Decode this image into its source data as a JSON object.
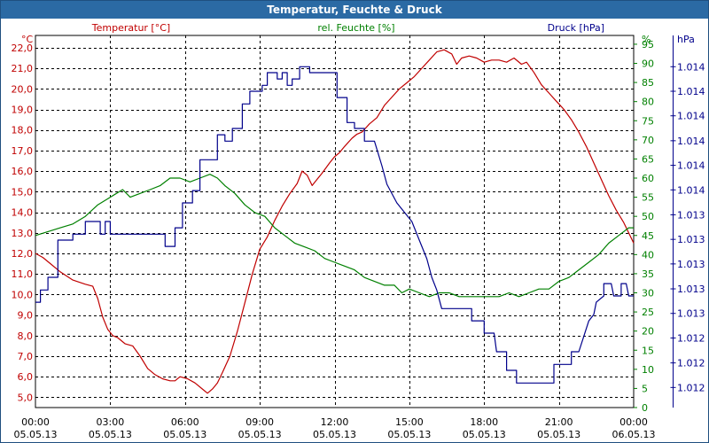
{
  "window": {
    "title": "Temperatur, Feuchte & Druck"
  },
  "colors": {
    "temperature": "#c00000",
    "humidity": "#008000",
    "pressure": "#00008b",
    "titlebar": "#2b6aa4",
    "grid": "#000000"
  },
  "chart_data": {
    "type": "line",
    "title": "Temperatur, Feuchte & Druck",
    "grid": true,
    "x": {
      "range_hours": [
        0,
        24
      ],
      "ticks": [
        {
          "time": "00:00",
          "date": "05.05.13"
        },
        {
          "time": "03:00",
          "date": "05.05.13"
        },
        {
          "time": "06:00",
          "date": "05.05.13"
        },
        {
          "time": "09:00",
          "date": "05.05.13"
        },
        {
          "time": "12:00",
          "date": "05.05.13"
        },
        {
          "time": "15:00",
          "date": "05.05.13"
        },
        {
          "time": "18:00",
          "date": "05.05.13"
        },
        {
          "time": "21:00",
          "date": "05.05.13"
        },
        {
          "time": "00:00",
          "date": "06.05.13"
        }
      ]
    },
    "axes": {
      "temperature": {
        "label": "Temperatur [°C]",
        "unit": "°C",
        "range": [
          4.5,
          22.6
        ],
        "tick_values": [
          5,
          6,
          7,
          8,
          9,
          10,
          11,
          12,
          13,
          14,
          15,
          16,
          17,
          18,
          19,
          20,
          21,
          22
        ],
        "tick_labels": [
          "5,0",
          "6,0",
          "7,0",
          "8,0",
          "9,0",
          "10,0",
          "11,0",
          "12,0",
          "13,0",
          "14,0",
          "15,0",
          "16,0",
          "17,0",
          "18,0",
          "19,0",
          "20,0",
          "21,0",
          "22,0"
        ]
      },
      "humidity": {
        "label": "rel. Feuchte [%]",
        "unit": "%",
        "range": [
          0,
          97.3
        ],
        "tick_values": [
          0,
          5,
          10,
          15,
          20,
          25,
          30,
          35,
          40,
          45,
          50,
          55,
          60,
          65,
          70,
          75,
          80,
          85,
          90,
          95
        ],
        "tick_labels": [
          "0",
          "5",
          "10",
          "15",
          "20",
          "25",
          "30",
          "35",
          "40",
          "45",
          "50",
          "55",
          "60",
          "65",
          "70",
          "75",
          "80",
          "85",
          "90",
          "95"
        ]
      },
      "pressure": {
        "label": "Druck [hPa]",
        "unit": "hPa",
        "range": [
          0,
          100
        ],
        "tick_values": [
          5.4,
          12.0,
          18.7,
          25.3,
          31.9,
          38.6,
          45.2,
          51.8,
          58.5,
          65.1,
          71.7,
          78.4,
          85.0,
          91.6
        ],
        "tick_labels": [
          "1.012",
          "1.012",
          "1.012",
          "1.013",
          "1.013",
          "1.013",
          "1.013",
          "1.013",
          "1.014",
          "1.014",
          "1.014",
          "1.014",
          "1.014",
          "1.014"
        ]
      }
    },
    "series": [
      {
        "name": "Temperatur [°C]",
        "axis": "temperature",
        "points": [
          [
            0,
            12.0
          ],
          [
            0.3,
            11.8
          ],
          [
            0.6,
            11.5
          ],
          [
            1.0,
            11.1
          ],
          [
            1.5,
            10.7
          ],
          [
            2.0,
            10.5
          ],
          [
            2.3,
            10.4
          ],
          [
            2.5,
            9.8
          ],
          [
            2.7,
            8.9
          ],
          [
            2.9,
            8.3
          ],
          [
            3.1,
            8.0
          ],
          [
            3.3,
            7.9
          ],
          [
            3.6,
            7.6
          ],
          [
            3.9,
            7.5
          ],
          [
            4.2,
            7.0
          ],
          [
            4.5,
            6.4
          ],
          [
            4.8,
            6.1
          ],
          [
            5.1,
            5.9
          ],
          [
            5.4,
            5.8
          ],
          [
            5.6,
            5.8
          ],
          [
            5.8,
            6.0
          ],
          [
            6.1,
            5.9
          ],
          [
            6.4,
            5.7
          ],
          [
            6.7,
            5.4
          ],
          [
            6.9,
            5.2
          ],
          [
            7.1,
            5.4
          ],
          [
            7.3,
            5.7
          ],
          [
            7.5,
            6.2
          ],
          [
            7.8,
            7.0
          ],
          [
            8.1,
            8.2
          ],
          [
            8.4,
            9.6
          ],
          [
            8.7,
            11.0
          ],
          [
            9.0,
            12.2
          ],
          [
            9.3,
            12.8
          ],
          [
            9.6,
            13.6
          ],
          [
            9.9,
            14.3
          ],
          [
            10.2,
            14.9
          ],
          [
            10.5,
            15.4
          ],
          [
            10.7,
            16.0
          ],
          [
            10.9,
            15.8
          ],
          [
            11.1,
            15.3
          ],
          [
            11.3,
            15.6
          ],
          [
            11.5,
            15.9
          ],
          [
            11.8,
            16.4
          ],
          [
            12.0,
            16.7
          ],
          [
            12.2,
            16.9
          ],
          [
            12.4,
            17.2
          ],
          [
            12.7,
            17.6
          ],
          [
            12.9,
            17.8
          ],
          [
            13.1,
            17.9
          ],
          [
            13.4,
            18.3
          ],
          [
            13.7,
            18.6
          ],
          [
            14.0,
            19.2
          ],
          [
            14.3,
            19.6
          ],
          [
            14.6,
            20.0
          ],
          [
            14.9,
            20.3
          ],
          [
            15.2,
            20.6
          ],
          [
            15.5,
            21.0
          ],
          [
            15.8,
            21.4
          ],
          [
            16.1,
            21.8
          ],
          [
            16.4,
            21.9
          ],
          [
            16.7,
            21.7
          ],
          [
            16.9,
            21.2
          ],
          [
            17.1,
            21.5
          ],
          [
            17.4,
            21.6
          ],
          [
            17.7,
            21.5
          ],
          [
            18.0,
            21.3
          ],
          [
            18.3,
            21.4
          ],
          [
            18.6,
            21.4
          ],
          [
            18.9,
            21.3
          ],
          [
            19.2,
            21.5
          ],
          [
            19.5,
            21.2
          ],
          [
            19.7,
            21.3
          ],
          [
            20.0,
            20.8
          ],
          [
            20.3,
            20.2
          ],
          [
            20.6,
            19.8
          ],
          [
            20.9,
            19.4
          ],
          [
            21.2,
            19.0
          ],
          [
            21.5,
            18.5
          ],
          [
            21.8,
            17.9
          ],
          [
            22.1,
            17.2
          ],
          [
            22.4,
            16.4
          ],
          [
            22.7,
            15.6
          ],
          [
            23.0,
            14.8
          ],
          [
            23.3,
            14.1
          ],
          [
            23.6,
            13.5
          ],
          [
            24.0,
            12.5
          ]
        ]
      },
      {
        "name": "rel. Feuchte [%]",
        "axis": "humidity",
        "points": [
          [
            0,
            45
          ],
          [
            0.5,
            46
          ],
          [
            1.0,
            47
          ],
          [
            1.5,
            48
          ],
          [
            2.0,
            50
          ],
          [
            2.5,
            53
          ],
          [
            3.0,
            55
          ],
          [
            3.5,
            57
          ],
          [
            3.8,
            55
          ],
          [
            4.2,
            56
          ],
          [
            4.6,
            57
          ],
          [
            5.0,
            58
          ],
          [
            5.4,
            60
          ],
          [
            5.8,
            60
          ],
          [
            6.2,
            59
          ],
          [
            6.6,
            60
          ],
          [
            7.0,
            61
          ],
          [
            7.3,
            60
          ],
          [
            7.6,
            58
          ],
          [
            8.0,
            56
          ],
          [
            8.4,
            53
          ],
          [
            8.8,
            51
          ],
          [
            9.2,
            50
          ],
          [
            9.6,
            47
          ],
          [
            10.0,
            45
          ],
          [
            10.4,
            43
          ],
          [
            10.8,
            42
          ],
          [
            11.2,
            41
          ],
          [
            11.6,
            39
          ],
          [
            12.0,
            38
          ],
          [
            12.4,
            37
          ],
          [
            12.8,
            36
          ],
          [
            13.2,
            34
          ],
          [
            13.6,
            33
          ],
          [
            14.0,
            32
          ],
          [
            14.4,
            32
          ],
          [
            14.7,
            30
          ],
          [
            15.0,
            31
          ],
          [
            15.4,
            30
          ],
          [
            15.8,
            29
          ],
          [
            16.2,
            30
          ],
          [
            16.6,
            30
          ],
          [
            17.0,
            29
          ],
          [
            17.4,
            29
          ],
          [
            17.8,
            29
          ],
          [
            18.2,
            29
          ],
          [
            18.6,
            29
          ],
          [
            19.0,
            30
          ],
          [
            19.4,
            29
          ],
          [
            19.8,
            30
          ],
          [
            20.2,
            31
          ],
          [
            20.6,
            31
          ],
          [
            21.0,
            33
          ],
          [
            21.4,
            34
          ],
          [
            21.8,
            36
          ],
          [
            22.2,
            38
          ],
          [
            22.6,
            40
          ],
          [
            23.0,
            43
          ],
          [
            23.4,
            45
          ],
          [
            23.8,
            47
          ],
          [
            24.0,
            47
          ]
        ]
      },
      {
        "name": "Druck [hPa]",
        "axis": "pressure",
        "points": [
          [
            0,
            28.3
          ],
          [
            0.2,
            28.3
          ],
          [
            0.2,
            31.6
          ],
          [
            0.5,
            31.6
          ],
          [
            0.5,
            35.0
          ],
          [
            0.9,
            35.0
          ],
          [
            0.9,
            45.0
          ],
          [
            1.5,
            45.0
          ],
          [
            1.5,
            46.6
          ],
          [
            2.0,
            46.6
          ],
          [
            2.0,
            50.0
          ],
          [
            2.6,
            50.0
          ],
          [
            2.6,
            46.6
          ],
          [
            2.8,
            46.6
          ],
          [
            2.8,
            50.0
          ],
          [
            3.0,
            50.0
          ],
          [
            3.0,
            46.6
          ],
          [
            5.2,
            46.6
          ],
          [
            5.2,
            43.3
          ],
          [
            5.6,
            43.3
          ],
          [
            5.6,
            48.3
          ],
          [
            5.9,
            48.3
          ],
          [
            5.9,
            55.0
          ],
          [
            6.3,
            55.0
          ],
          [
            6.3,
            58.3
          ],
          [
            6.6,
            58.3
          ],
          [
            6.6,
            66.6
          ],
          [
            7.3,
            66.6
          ],
          [
            7.3,
            73.3
          ],
          [
            7.6,
            73.3
          ],
          [
            7.6,
            71.6
          ],
          [
            7.9,
            71.6
          ],
          [
            7.9,
            75.0
          ],
          [
            8.3,
            75.0
          ],
          [
            8.3,
            81.6
          ],
          [
            8.6,
            81.6
          ],
          [
            8.6,
            85.0
          ],
          [
            9.1,
            85.0
          ],
          [
            9.1,
            86.6
          ],
          [
            9.3,
            86.6
          ],
          [
            9.3,
            90.0
          ],
          [
            9.7,
            90.0
          ],
          [
            9.7,
            88.3
          ],
          [
            9.9,
            88.3
          ],
          [
            9.9,
            90.0
          ],
          [
            10.1,
            90.0
          ],
          [
            10.1,
            86.6
          ],
          [
            10.3,
            86.6
          ],
          [
            10.3,
            88.3
          ],
          [
            10.6,
            88.3
          ],
          [
            10.6,
            91.6
          ],
          [
            11.0,
            91.6
          ],
          [
            11.0,
            90.0
          ],
          [
            12.1,
            90.0
          ],
          [
            12.1,
            83.3
          ],
          [
            12.5,
            83.3
          ],
          [
            12.5,
            76.6
          ],
          [
            12.8,
            76.6
          ],
          [
            12.8,
            75.0
          ],
          [
            13.2,
            75.0
          ],
          [
            13.2,
            71.6
          ],
          [
            13.6,
            71.6
          ],
          [
            13.9,
            65.0
          ],
          [
            14.1,
            60.0
          ],
          [
            14.5,
            55.0
          ],
          [
            15.1,
            50.0
          ],
          [
            15.4,
            45.0
          ],
          [
            15.7,
            40.0
          ],
          [
            15.9,
            35.0
          ],
          [
            16.1,
            31.6
          ],
          [
            16.3,
            26.6
          ],
          [
            17.5,
            26.6
          ],
          [
            17.5,
            23.3
          ],
          [
            18.0,
            23.3
          ],
          [
            18.0,
            20.0
          ],
          [
            18.4,
            20.0
          ],
          [
            18.5,
            15.0
          ],
          [
            18.9,
            15.0
          ],
          [
            18.9,
            10.0
          ],
          [
            19.3,
            10.0
          ],
          [
            19.3,
            6.6
          ],
          [
            20.8,
            6.6
          ],
          [
            20.8,
            11.6
          ],
          [
            21.5,
            11.6
          ],
          [
            21.5,
            15.0
          ],
          [
            21.8,
            15.0
          ],
          [
            22.2,
            23.3
          ],
          [
            22.4,
            25.0
          ],
          [
            22.5,
            28.3
          ],
          [
            22.8,
            30.0
          ],
          [
            22.8,
            33.3
          ],
          [
            23.1,
            33.3
          ],
          [
            23.2,
            30.0
          ],
          [
            23.5,
            30.0
          ],
          [
            23.5,
            33.3
          ],
          [
            23.7,
            33.3
          ],
          [
            23.8,
            30.0
          ],
          [
            24.0,
            30.0
          ]
        ]
      }
    ]
  }
}
